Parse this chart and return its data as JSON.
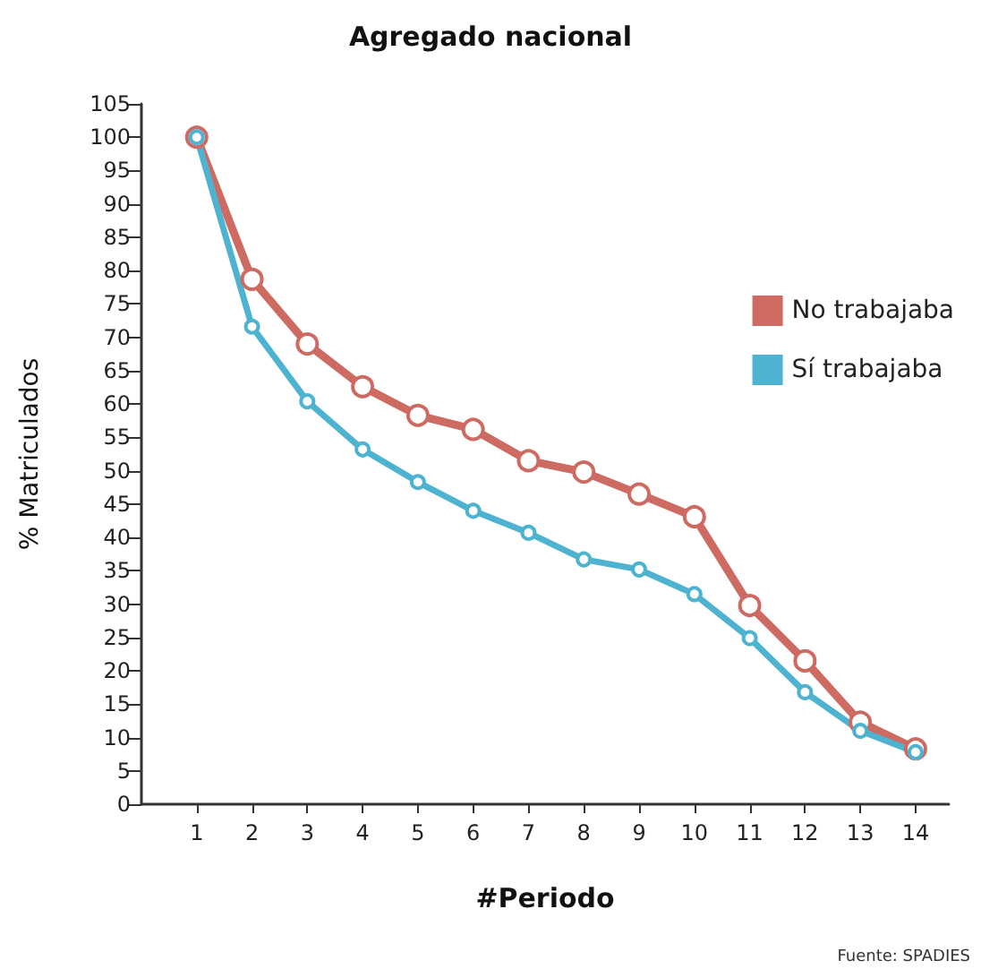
{
  "chart_data": {
    "type": "line",
    "title": "Agregado nacional",
    "xlabel": "#Periodo",
    "ylabel": "% Matriculados",
    "x": [
      1,
      2,
      3,
      4,
      5,
      6,
      7,
      8,
      9,
      10,
      11,
      12,
      13,
      14
    ],
    "series": [
      {
        "name": "No trabajaba",
        "color": "#cd6b63",
        "values": [
          100,
          78.7,
          69.0,
          62.6,
          58.3,
          56.2,
          51.5,
          49.8,
          46.5,
          43.1,
          29.8,
          21.5,
          12.3,
          8.3
        ]
      },
      {
        "name": "Sí trabajaba",
        "color": "#4db3d1",
        "values": [
          100,
          71.6,
          60.4,
          53.2,
          48.3,
          44.0,
          40.7,
          36.7,
          35.2,
          31.5,
          24.9,
          16.8,
          11.0,
          7.8
        ]
      }
    ],
    "xlim": [
      0,
      14.6
    ],
    "xticks": [
      1,
      2,
      3,
      4,
      5,
      6,
      7,
      8,
      9,
      10,
      11,
      12,
      13,
      14
    ],
    "ylim": [
      0,
      105
    ],
    "yticks": [
      0,
      5,
      10,
      15,
      20,
      25,
      30,
      35,
      40,
      45,
      50,
      55,
      60,
      65,
      70,
      75,
      80,
      85,
      90,
      95,
      100,
      105
    ],
    "grid": false,
    "legend": "right",
    "marker": "circle",
    "line_style": "solid",
    "annotations": [
      "Fuente: SPADIES"
    ]
  }
}
